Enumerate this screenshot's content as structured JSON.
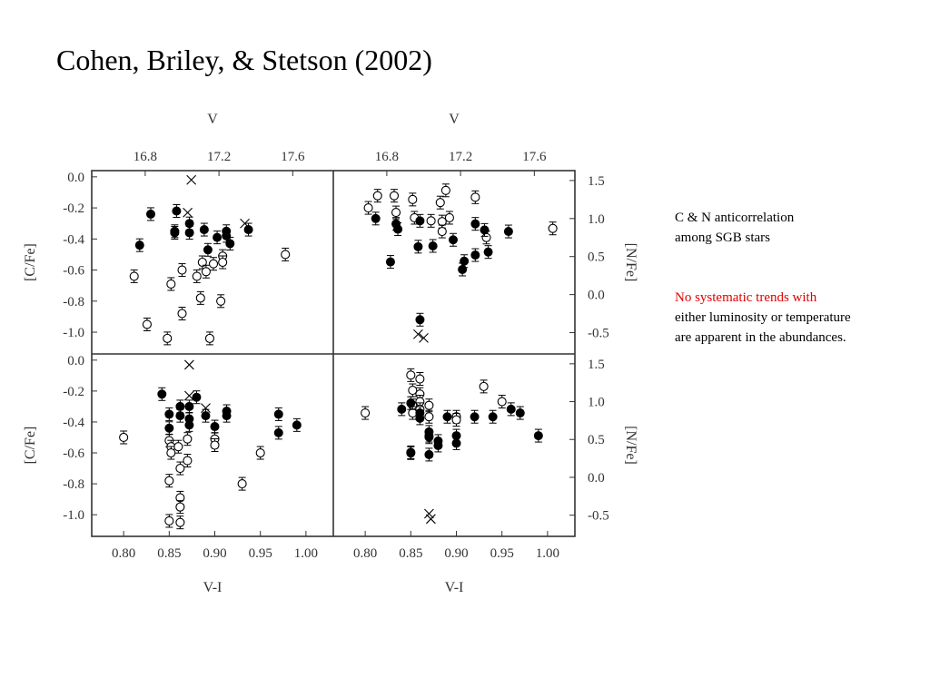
{
  "title": "Cohen, Briley, & Stetson (2002)",
  "notes": {
    "note1": [
      "C & N anticorrelation",
      "among SGB stars"
    ],
    "note2_red": "No systematic trends with",
    "note2_rest": [
      "either luminosity or temperature",
      "are apparent in the abundances."
    ]
  },
  "colors": {
    "text": "#000000",
    "highlight": "#e00000",
    "axis": "#333333"
  },
  "chart_data": {
    "type": "scatter",
    "x_axis": {
      "label": "V-I",
      "range": [
        0.765,
        1.03
      ],
      "ticks": [
        "0.80",
        "0.85",
        "0.90",
        "0.95",
        "1.00"
      ]
    },
    "top_axis": {
      "label": "V",
      "range": [
        16.51,
        17.82
      ],
      "ticks": [
        "16.8",
        "17.2",
        "17.6"
      ]
    },
    "left_axis": {
      "label": "[C/Fe]",
      "range": [
        -1.14,
        0.04
      ],
      "ticks": [
        "0.0",
        "-0.2",
        "-0.4",
        "-0.6",
        "-0.8",
        "-1.0"
      ]
    },
    "right_axis": {
      "label": "[N/Fe]",
      "range": [
        -0.78,
        1.63
      ],
      "ticks": [
        "1.5",
        "1.0",
        "0.5",
        "0.0",
        "-0.5"
      ]
    },
    "legend": "none",
    "grid": false,
    "marker_kinds": [
      "filled-circle",
      "open-circle",
      "cross"
    ],
    "panels": [
      {
        "id": "top-left",
        "xvar": "V",
        "yvar": "[C/Fe]",
        "filled": [
          [
            16.83,
            -0.24
          ],
          [
            16.97,
            -0.22
          ],
          [
            16.77,
            -0.44
          ],
          [
            16.96,
            -0.36
          ],
          [
            16.96,
            -0.35
          ],
          [
            17.04,
            -0.3
          ],
          [
            17.04,
            -0.36
          ],
          [
            17.12,
            -0.34
          ],
          [
            17.14,
            -0.47
          ],
          [
            17.19,
            -0.39
          ],
          [
            17.24,
            -0.35
          ],
          [
            17.26,
            -0.43
          ],
          [
            17.24,
            -0.38
          ],
          [
            17.36,
            -0.34
          ]
        ],
        "open": [
          [
            16.74,
            -0.64
          ],
          [
            16.81,
            -0.95
          ],
          [
            16.92,
            -1.04
          ],
          [
            16.94,
            -0.69
          ],
          [
            17.0,
            -0.6
          ],
          [
            17.0,
            -0.88
          ],
          [
            17.08,
            -0.64
          ],
          [
            17.11,
            -0.55
          ],
          [
            17.1,
            -0.78
          ],
          [
            17.13,
            -0.61
          ],
          [
            17.15,
            -1.04
          ],
          [
            17.17,
            -0.56
          ],
          [
            17.22,
            -0.51
          ],
          [
            17.21,
            -0.8
          ],
          [
            17.22,
            -0.55
          ],
          [
            17.56,
            -0.5
          ]
        ],
        "cross": [
          [
            17.05,
            -0.02
          ],
          [
            17.03,
            -0.23
          ],
          [
            17.34,
            -0.3
          ]
        ],
        "xaxis_top": true,
        "xaxis_bottom": false
      },
      {
        "id": "top-right",
        "xvar": "V",
        "yvar": "[N/Fe]",
        "filled": [
          [
            16.74,
            1.0
          ],
          [
            16.82,
            0.43
          ],
          [
            16.86,
            0.86
          ],
          [
            16.85,
            0.93
          ],
          [
            16.97,
            0.63
          ],
          [
            16.98,
            0.97
          ],
          [
            17.05,
            0.64
          ],
          [
            16.98,
            -0.33
          ],
          [
            17.16,
            0.72
          ],
          [
            17.21,
            0.33
          ],
          [
            17.22,
            0.44
          ],
          [
            17.28,
            0.93
          ],
          [
            17.33,
            0.85
          ],
          [
            17.28,
            0.52
          ],
          [
            17.35,
            0.56
          ],
          [
            17.46,
            0.83
          ]
        ],
        "open": [
          [
            16.7,
            1.14
          ],
          [
            16.75,
            1.3
          ],
          [
            16.84,
            1.3
          ],
          [
            16.85,
            1.08
          ],
          [
            16.94,
            1.25
          ],
          [
            16.95,
            1.01
          ],
          [
            17.04,
            0.97
          ],
          [
            17.09,
            1.21
          ],
          [
            17.12,
            1.37
          ],
          [
            17.1,
            0.96
          ],
          [
            17.1,
            0.83
          ],
          [
            17.14,
            1.01
          ],
          [
            17.28,
            1.28
          ],
          [
            17.34,
            0.75
          ],
          [
            17.7,
            0.87
          ]
        ],
        "cross": [
          [
            16.97,
            -0.52
          ],
          [
            17.0,
            -0.57
          ]
        ],
        "xaxis_top": true,
        "xaxis_bottom": false
      },
      {
        "id": "bottom-left",
        "xvar": "V-I",
        "yvar": "[C/Fe]",
        "filled": [
          [
            0.842,
            -0.22
          ],
          [
            0.85,
            -0.35
          ],
          [
            0.85,
            -0.44
          ],
          [
            0.862,
            -0.3
          ],
          [
            0.862,
            -0.36
          ],
          [
            0.872,
            -0.3
          ],
          [
            0.872,
            -0.38
          ],
          [
            0.872,
            -0.42
          ],
          [
            0.88,
            -0.24
          ],
          [
            0.89,
            -0.36
          ],
          [
            0.9,
            -0.43
          ],
          [
            0.913,
            -0.33
          ],
          [
            0.913,
            -0.36
          ],
          [
            0.97,
            -0.35
          ],
          [
            0.97,
            -0.47
          ],
          [
            0.99,
            -0.42
          ]
        ],
        "open": [
          [
            0.8,
            -0.5
          ],
          [
            0.85,
            -0.52
          ],
          [
            0.852,
            -0.56
          ],
          [
            0.852,
            -0.6
          ],
          [
            0.85,
            -0.78
          ],
          [
            0.85,
            -1.04
          ],
          [
            0.86,
            -0.56
          ],
          [
            0.862,
            -0.7
          ],
          [
            0.862,
            -0.89
          ],
          [
            0.862,
            -0.95
          ],
          [
            0.862,
            -1.05
          ],
          [
            0.87,
            -0.65
          ],
          [
            0.87,
            -0.51
          ],
          [
            0.9,
            -0.51
          ],
          [
            0.9,
            -0.55
          ],
          [
            0.93,
            -0.8
          ],
          [
            0.95,
            -0.6
          ]
        ],
        "cross": [
          [
            0.872,
            -0.03
          ],
          [
            0.872,
            -0.23
          ],
          [
            0.89,
            -0.31
          ]
        ],
        "xaxis_top": false,
        "xaxis_bottom": true
      },
      {
        "id": "bottom-right",
        "xvar": "V-I",
        "yvar": "[N/Fe]",
        "filled": [
          [
            0.84,
            0.9
          ],
          [
            0.85,
            0.98
          ],
          [
            0.85,
            0.32
          ],
          [
            0.86,
            0.78
          ],
          [
            0.86,
            0.85
          ],
          [
            0.87,
            0.6
          ],
          [
            0.87,
            0.55
          ],
          [
            0.87,
            0.53
          ],
          [
            0.88,
            0.48
          ],
          [
            0.88,
            0.42
          ],
          [
            0.89,
            0.8
          ],
          [
            0.9,
            0.55
          ],
          [
            0.9,
            0.45
          ],
          [
            0.92,
            0.8
          ],
          [
            0.94,
            0.8
          ],
          [
            0.96,
            0.9
          ],
          [
            0.97,
            0.85
          ],
          [
            0.99,
            0.55
          ],
          [
            0.85,
            0.33
          ],
          [
            0.87,
            0.3
          ]
        ],
        "open": [
          [
            0.8,
            0.85
          ],
          [
            0.85,
            1.35
          ],
          [
            0.852,
            1.15
          ],
          [
            0.852,
            0.95
          ],
          [
            0.852,
            0.85
          ],
          [
            0.86,
            1.3
          ],
          [
            0.86,
            1.1
          ],
          [
            0.86,
            1.0
          ],
          [
            0.86,
            0.9
          ],
          [
            0.87,
            0.95
          ],
          [
            0.87,
            0.8
          ],
          [
            0.9,
            0.8
          ],
          [
            0.9,
            0.76
          ],
          [
            0.93,
            1.2
          ],
          [
            0.95,
            1.0
          ]
        ],
        "cross": [
          [
            0.87,
            -0.48
          ],
          [
            0.872,
            -0.55
          ]
        ],
        "xaxis_top": false,
        "xaxis_bottom": true
      }
    ]
  }
}
